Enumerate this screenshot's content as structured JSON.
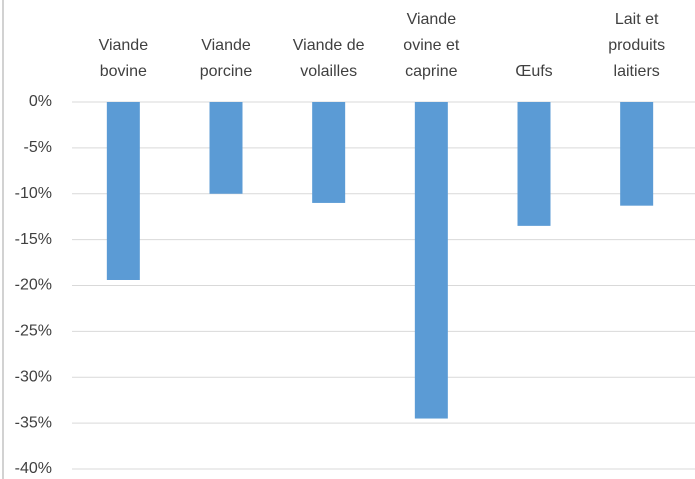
{
  "chart_data": {
    "type": "bar",
    "categories": [
      "Viande bovine",
      "Viande porcine",
      "Viande de volailles",
      "Viande ovine et caprine",
      "Œufs",
      "Lait et produits laitiers"
    ],
    "values": [
      -19.4,
      -10,
      -11,
      -34.5,
      -13.5,
      -11.3
    ],
    "color": "#5b9bd5",
    "ylim": [
      -40,
      0
    ],
    "yticks": [
      {
        "value": 0,
        "label": "0%"
      },
      {
        "value": -5,
        "label": "-5%"
      },
      {
        "value": -10,
        "label": "-10%"
      },
      {
        "value": -15,
        "label": "-15%"
      },
      {
        "value": -20,
        "label": "-20%"
      },
      {
        "value": -25,
        "label": "-25%"
      },
      {
        "value": -30,
        "label": "-30%"
      },
      {
        "value": -35,
        "label": "-35%"
      },
      {
        "value": -40,
        "label": "-40%"
      }
    ],
    "grid": true
  }
}
